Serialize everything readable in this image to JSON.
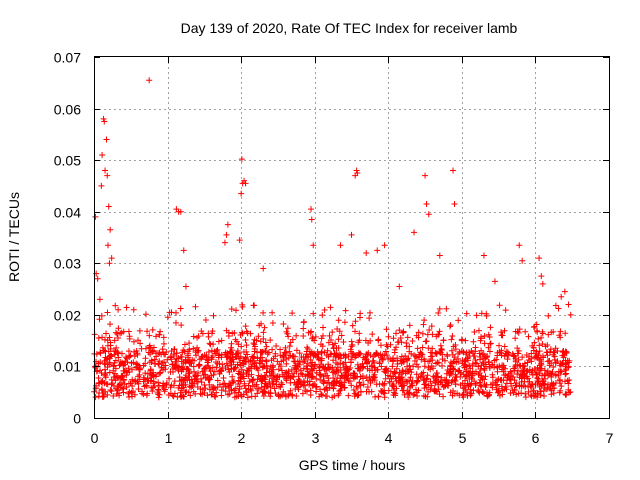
{
  "chart_data": {
    "type": "scatter",
    "title": "Day 139 of 2020, Rate Of TEC Index for receiver lamb",
    "xlabel": "GPS time / hours",
    "ylabel": "ROTI / TECUs",
    "xlim": [
      0,
      7
    ],
    "ylim": [
      0,
      0.07
    ],
    "x_ticks": [
      "0",
      "1",
      "2",
      "3",
      "4",
      "5",
      "6",
      "7"
    ],
    "y_ticks": [
      "0",
      "0.01",
      "0.02",
      "0.03",
      "0.04",
      "0.05",
      "0.06",
      "0.07"
    ],
    "grid": true,
    "marker": "+",
    "color": "#ff0000",
    "highlight_points": [
      {
        "x": 0.02,
        "y": 0.039
      },
      {
        "x": 0.03,
        "y": 0.028
      },
      {
        "x": 0.05,
        "y": 0.027
      },
      {
        "x": 0.08,
        "y": 0.023
      },
      {
        "x": 0.1,
        "y": 0.045
      },
      {
        "x": 0.11,
        "y": 0.051
      },
      {
        "x": 0.13,
        "y": 0.058
      },
      {
        "x": 0.14,
        "y": 0.0575
      },
      {
        "x": 0.15,
        "y": 0.048
      },
      {
        "x": 0.17,
        "y": 0.054
      },
      {
        "x": 0.18,
        "y": 0.047
      },
      {
        "x": 0.19,
        "y": 0.0335
      },
      {
        "x": 0.2,
        "y": 0.041
      },
      {
        "x": 0.21,
        "y": 0.03
      },
      {
        "x": 0.22,
        "y": 0.0365
      },
      {
        "x": 0.24,
        "y": 0.031
      },
      {
        "x": 0.75,
        "y": 0.0655
      },
      {
        "x": 1.12,
        "y": 0.0405
      },
      {
        "x": 1.15,
        "y": 0.04
      },
      {
        "x": 1.18,
        "y": 0.04
      },
      {
        "x": 1.22,
        "y": 0.0325
      },
      {
        "x": 1.25,
        "y": 0.0255
      },
      {
        "x": 1.78,
        "y": 0.034
      },
      {
        "x": 1.8,
        "y": 0.0355
      },
      {
        "x": 1.82,
        "y": 0.0375
      },
      {
        "x": 1.98,
        "y": 0.0345
      },
      {
        "x": 2.0,
        "y": 0.0435
      },
      {
        "x": 2.01,
        "y": 0.0502
      },
      {
        "x": 2.02,
        "y": 0.0455
      },
      {
        "x": 2.04,
        "y": 0.046
      },
      {
        "x": 2.06,
        "y": 0.0455
      },
      {
        "x": 2.3,
        "y": 0.029
      },
      {
        "x": 2.95,
        "y": 0.0405
      },
      {
        "x": 2.96,
        "y": 0.0385
      },
      {
        "x": 2.98,
        "y": 0.0335
      },
      {
        "x": 3.35,
        "y": 0.0335
      },
      {
        "x": 3.5,
        "y": 0.0355
      },
      {
        "x": 3.55,
        "y": 0.047
      },
      {
        "x": 3.57,
        "y": 0.048
      },
      {
        "x": 3.58,
        "y": 0.0475
      },
      {
        "x": 3.7,
        "y": 0.032
      },
      {
        "x": 3.85,
        "y": 0.0325
      },
      {
        "x": 3.95,
        "y": 0.0335
      },
      {
        "x": 4.15,
        "y": 0.0255
      },
      {
        "x": 4.35,
        "y": 0.036
      },
      {
        "x": 4.5,
        "y": 0.047
      },
      {
        "x": 4.52,
        "y": 0.0415
      },
      {
        "x": 4.55,
        "y": 0.0395
      },
      {
        "x": 4.7,
        "y": 0.0315
      },
      {
        "x": 4.88,
        "y": 0.048
      },
      {
        "x": 4.9,
        "y": 0.0415
      },
      {
        "x": 5.3,
        "y": 0.0315
      },
      {
        "x": 5.45,
        "y": 0.0265
      },
      {
        "x": 5.78,
        "y": 0.0335
      },
      {
        "x": 5.82,
        "y": 0.0305
      },
      {
        "x": 6.05,
        "y": 0.031
      },
      {
        "x": 6.08,
        "y": 0.0275
      },
      {
        "x": 6.1,
        "y": 0.026
      },
      {
        "x": 6.35,
        "y": 0.0235
      },
      {
        "x": 6.4,
        "y": 0.0245
      },
      {
        "x": 6.45,
        "y": 0.022
      },
      {
        "x": 6.48,
        "y": 0.02
      }
    ]
  }
}
